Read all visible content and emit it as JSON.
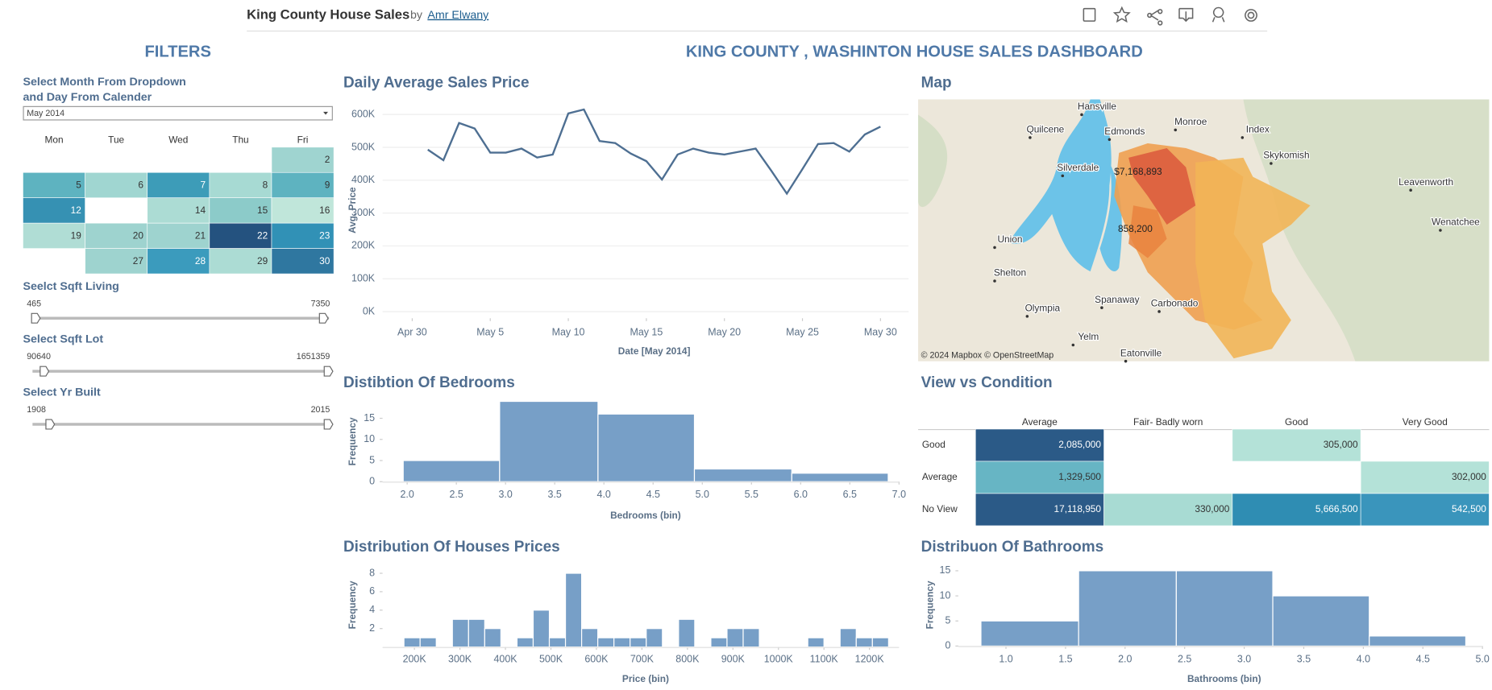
{
  "header": {
    "title": "King County House Sales",
    "by": "by",
    "author": "Amr Elwany"
  },
  "filters": {
    "title": "FILTERS",
    "month_prompt": [
      "Select Month From Dropdown",
      "and Day From Calender"
    ],
    "month": "May 2014",
    "weekdays": [
      "Mon",
      "Tue",
      "Wed",
      "Thu",
      "Fri"
    ],
    "days": [
      2,
      5,
      6,
      7,
      8,
      9,
      12,
      14,
      15,
      16,
      19,
      20,
      21,
      22,
      23,
      27,
      28,
      29,
      30
    ],
    "day_colors": [
      "#9fd4d0",
      "#5eb3c0",
      "#a0d6d1",
      "#3d9cb8",
      "#a7dad3",
      "#5eb3c0",
      "#3691b3",
      "#acdcd4",
      "#8ccbc9",
      "#c0e6da",
      "#b0ddd5",
      "#9ed3cf",
      "#9ed3cf",
      "#24527f",
      "#3191b6",
      "#9ed3cf",
      "#3b9bbd",
      "#acdcd4",
      "#2f77a0"
    ],
    "sliders": [
      {
        "label": "Seelct Sqft Living",
        "min": 465,
        "max": 7350
      },
      {
        "label": "Select Sqft Lot",
        "min": 90640,
        "max": 1651359
      },
      {
        "label": "Select Yr Built",
        "min": 1908,
        "max": 2015
      }
    ]
  },
  "dashboard_title": "KING COUNTY , WASHINTON HOUSE SALES DASHBOARD",
  "map": {
    "title": "Map",
    "places": [
      "Hansville",
      "Quilcene",
      "Edmonds",
      "Monroe",
      "Index",
      "Skykomish",
      "Silverdale",
      "Leavenworth",
      "Wenatchee",
      "Union",
      "Shelton",
      "Olympia",
      "Spanaway",
      "Carbonado",
      "Yelm",
      "Eatonville"
    ],
    "labels": [
      "$7,168,893",
      "858,200"
    ],
    "attribution": "© 2024 Mapbox © OpenStreetMap"
  },
  "chart_data": [
    {
      "type": "line",
      "title": "Daily Average Sales Price",
      "xlabel": "Date [May 2014]",
      "ylabel": "Avg. Price",
      "color": "#4e6f92",
      "x": [
        1,
        2,
        3,
        4,
        5,
        6,
        7,
        8,
        9,
        10,
        11,
        12,
        13,
        14,
        15,
        16,
        17,
        18,
        19,
        20,
        21,
        22,
        23,
        24,
        25,
        26,
        27,
        28,
        29,
        30
      ],
      "values": [
        493000,
        461000,
        574000,
        557000,
        484000,
        484000,
        496000,
        469000,
        478000,
        603000,
        615000,
        519000,
        513000,
        481000,
        458000,
        402000,
        478000,
        496000,
        484000,
        478000,
        487000,
        496000,
        429000,
        359000,
        434000,
        510000,
        513000,
        487000,
        539000,
        563000
      ],
      "xlim": [
        -1.9,
        31.8
      ],
      "xticks": [
        {
          "value": 0,
          "label": "Apr 30"
        },
        {
          "value": 5,
          "label": "May 5"
        },
        {
          "value": 10,
          "label": "May 10"
        },
        {
          "value": 15,
          "label": "May 15"
        },
        {
          "value": 20,
          "label": "May 20"
        },
        {
          "value": 25,
          "label": "May 25"
        },
        {
          "value": 30,
          "label": "May 30"
        }
      ],
      "ylim": [
        -20000,
        640000
      ],
      "yticks": [
        {
          "value": 0,
          "label": "0K"
        },
        {
          "value": 100000,
          "label": "100K"
        },
        {
          "value": 200000,
          "label": "200K"
        },
        {
          "value": 300000,
          "label": "300K"
        },
        {
          "value": 400000,
          "label": "400K"
        },
        {
          "value": 500000,
          "label": "500K"
        },
        {
          "value": 600000,
          "label": "600K"
        }
      ],
      "grid": true
    },
    {
      "type": "histogram",
      "title": "Distibtion Of Bedrooms",
      "xlabel": "Bedrooms (bin)",
      "ylabel": "Frequency",
      "color": "#779fc7",
      "bins": [
        1.96,
        2.94,
        3.94,
        4.92,
        5.91,
        6.89
      ],
      "counts": [
        5,
        19,
        16,
        3,
        2
      ],
      "xlim": [
        1.75,
        7.0
      ],
      "xticks": [
        {
          "value": 2,
          "label": "2.0"
        },
        {
          "value": 2.5,
          "label": "2.5"
        },
        {
          "value": 3,
          "label": "3.0"
        },
        {
          "value": 3.5,
          "label": "3.5"
        },
        {
          "value": 4,
          "label": "4.0"
        },
        {
          "value": 4.5,
          "label": "4.5"
        },
        {
          "value": 5,
          "label": "5.0"
        },
        {
          "value": 5.5,
          "label": "5.5"
        },
        {
          "value": 6,
          "label": "6.0"
        },
        {
          "value": 6.5,
          "label": "6.5"
        },
        {
          "value": 7,
          "label": "7.0"
        }
      ],
      "ylim": [
        0,
        19
      ],
      "yticks": [
        0,
        5,
        10,
        15
      ]
    },
    {
      "type": "histogram",
      "title": "Distribution Of Houses Prices",
      "xlabel": "Price (bin)",
      "ylabel": "Frequency",
      "color": "#779fc7",
      "bins": [
        177000,
        212500,
        248000,
        283500,
        319000,
        354500,
        390000,
        425500,
        461000,
        496500,
        532000,
        567500,
        603000,
        638500,
        674000,
        709500,
        745000,
        780500,
        816000,
        851500,
        887000,
        922500,
        958000,
        993500,
        1029000,
        1064500,
        1100000,
        1135500,
        1171000,
        1206500,
        1242000
      ],
      "counts": [
        1,
        1,
        0,
        3,
        3,
        2,
        0,
        1,
        4,
        1,
        8,
        2,
        1,
        1,
        1,
        2,
        0,
        3,
        0,
        1,
        2,
        2,
        0,
        0,
        0,
        1,
        0,
        2,
        1,
        1
      ],
      "xlim": [
        130000,
        1265000
      ],
      "xticks": [
        {
          "value": 200000,
          "label": "200K"
        },
        {
          "value": 300000,
          "label": "300K"
        },
        {
          "value": 400000,
          "label": "400K"
        },
        {
          "value": 500000,
          "label": "500K"
        },
        {
          "value": 600000,
          "label": "600K"
        },
        {
          "value": 700000,
          "label": "700K"
        },
        {
          "value": 800000,
          "label": "800K"
        },
        {
          "value": 900000,
          "label": "900K"
        },
        {
          "value": 1000000,
          "label": "1000K"
        },
        {
          "value": 1100000,
          "label": "1100K"
        },
        {
          "value": 1200000,
          "label": "1200K"
        }
      ],
      "ylim": [
        0,
        8.4
      ],
      "yticks": [
        2,
        4,
        6,
        8
      ]
    },
    {
      "type": "heatmap",
      "title": "View vs Condition",
      "x_categories": [
        "Average",
        "Fair- Badly worn",
        "Good",
        "Very Good"
      ],
      "y_categories": [
        "Good",
        "Average",
        "No View"
      ],
      "values": [
        [
          2085000,
          null,
          305000,
          null
        ],
        [
          1329500,
          null,
          null,
          302000
        ],
        [
          17118950,
          330000,
          5666500,
          542500
        ]
      ],
      "value_labels": [
        [
          "2,085,000",
          null,
          "305,000",
          null
        ],
        [
          "1,329,500",
          null,
          null,
          "302,000"
        ],
        [
          "17,118,950",
          "330,000",
          "5,666,500",
          "542,500"
        ]
      ],
      "colors": [
        [
          "#2b5a87",
          null,
          "#b4e2d8",
          null
        ],
        [
          "#67b5c4",
          null,
          null,
          "#b4e2d8"
        ],
        [
          "#2b5a87",
          "#a8dbd3",
          "#2f8db3",
          "#3a95bc"
        ]
      ]
    },
    {
      "type": "histogram",
      "title": "Distribuon Of Bathrooms",
      "xlabel": "Bathrooms (bin)",
      "ylabel": "Frequency",
      "color": "#779fc7",
      "bins": [
        0.79,
        1.61,
        2.43,
        3.24,
        4.05,
        4.86
      ],
      "counts": [
        5,
        15,
        15,
        10,
        2
      ],
      "xlim": [
        0.6,
        5.0
      ],
      "xticks": [
        {
          "value": 1,
          "label": "1.0"
        },
        {
          "value": 1.5,
          "label": "1.5"
        },
        {
          "value": 2,
          "label": "2.0"
        },
        {
          "value": 2.5,
          "label": "2.5"
        },
        {
          "value": 3,
          "label": "3.0"
        },
        {
          "value": 3.5,
          "label": "3.5"
        },
        {
          "value": 4,
          "label": "4.0"
        },
        {
          "value": 4.5,
          "label": "4.5"
        },
        {
          "value": 5,
          "label": "5.0"
        }
      ],
      "ylim": [
        0,
        16
      ],
      "yticks": [
        0,
        5,
        10,
        15
      ]
    }
  ]
}
